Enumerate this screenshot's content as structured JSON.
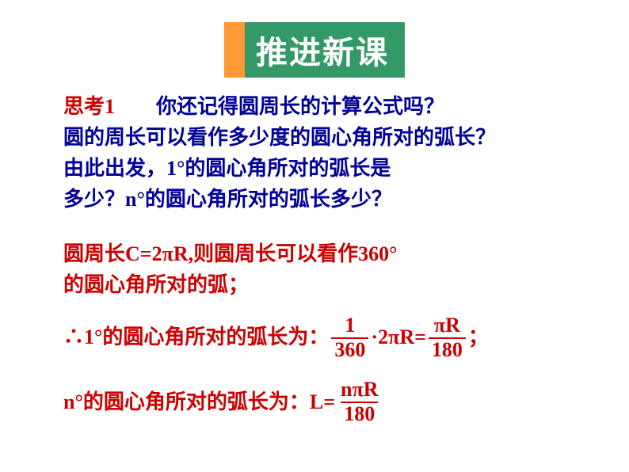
{
  "title": "推进新课",
  "para1": {
    "label": "思考1",
    "gap": "　　",
    "text1": "你还记得圆周长的计算公式吗？",
    "text2": "圆的周长可以看作多少度的圆心角所对的弧长？",
    "text3": "由此出发，1°的圆心角所对的弧长是",
    "text4": "多少？n°的圆心角所对的弧长多少？"
  },
  "para2": {
    "text1": "圆周长C=2πR,则圆周长可以看作360°",
    "text2": "的圆心角所对的弧；"
  },
  "formula1": {
    "prefix": "∴1°的圆心角所对的弧长为：",
    "frac1_num": "1",
    "frac1_den": "360",
    "mid": "·2πR=",
    "frac2_num": "πR",
    "frac2_den": "180",
    "suffix": "；"
  },
  "formula2": {
    "prefix": "n°的圆心角所对的弧长为：",
    "eq": "L=",
    "frac_num": "nπR",
    "frac_den": "180"
  },
  "colors": {
    "title_bg": "#339966",
    "title_accent": "#ff9933",
    "title_text": "#ffffff",
    "body_blue": "#000099",
    "body_red": "#cc0000",
    "background": "#ffffff"
  },
  "fontsize": {
    "title": 40,
    "body": 26
  }
}
